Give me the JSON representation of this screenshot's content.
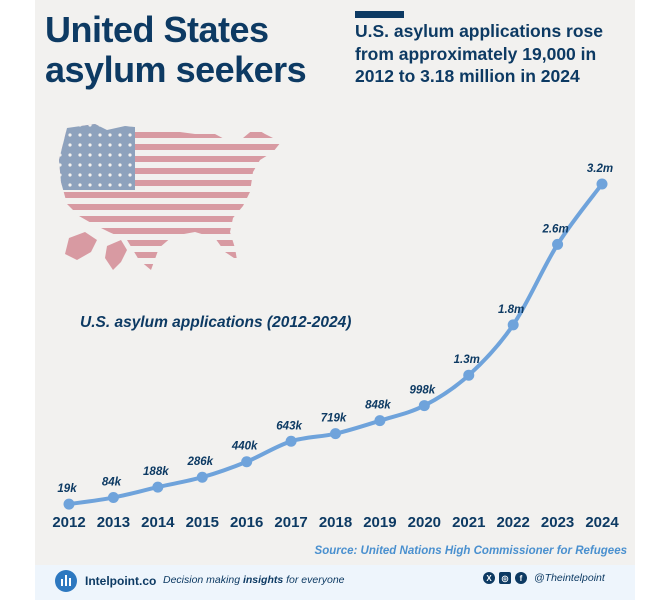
{
  "title": {
    "line1": "United States",
    "line2": "asylum seekers"
  },
  "subtitle": "U.S. asylum applications rose from approximately 19,000 in 2012 to 3.18 million in 2024",
  "chart_title": "U.S. asylum applications (2012-2024)",
  "source": "Source: United Nations High Commissioner for Refugees",
  "colors": {
    "navy": "#0d3a63",
    "line": "#6fa3db",
    "source": "#4a90cf",
    "footer_bg": "#eef5fc",
    "flag_red": "#d89aa2",
    "flag_blue": "#8ea2bd"
  },
  "footer": {
    "brand": "Intelpoint.co",
    "tagline_before": "Decision making ",
    "tagline_bold": "insights",
    "tagline_after": " for everyone",
    "handle": "@Theintelpoint",
    "icons": [
      "x-icon",
      "instagram-icon",
      "facebook-icon"
    ]
  },
  "chart_data": {
    "type": "line",
    "title": "U.S. asylum applications (2012-2024)",
    "x": [
      "2012",
      "2013",
      "2014",
      "2015",
      "2016",
      "2017",
      "2018",
      "2019",
      "2020",
      "2021",
      "2022",
      "2023",
      "2024"
    ],
    "values": [
      19000,
      84000,
      188000,
      286000,
      440000,
      643000,
      719000,
      848000,
      998000,
      1300000,
      1800000,
      2600000,
      3200000
    ],
    "labels": [
      "19k",
      "84k",
      "188k",
      "286k",
      "440k",
      "643k",
      "719k",
      "848k",
      "998k",
      "1.3m",
      "1.8m",
      "2.6m",
      "3.2m"
    ],
    "ylim": [
      0,
      3200000
    ],
    "grid": false,
    "legend": "none",
    "xlabel": "",
    "ylabel": ""
  }
}
